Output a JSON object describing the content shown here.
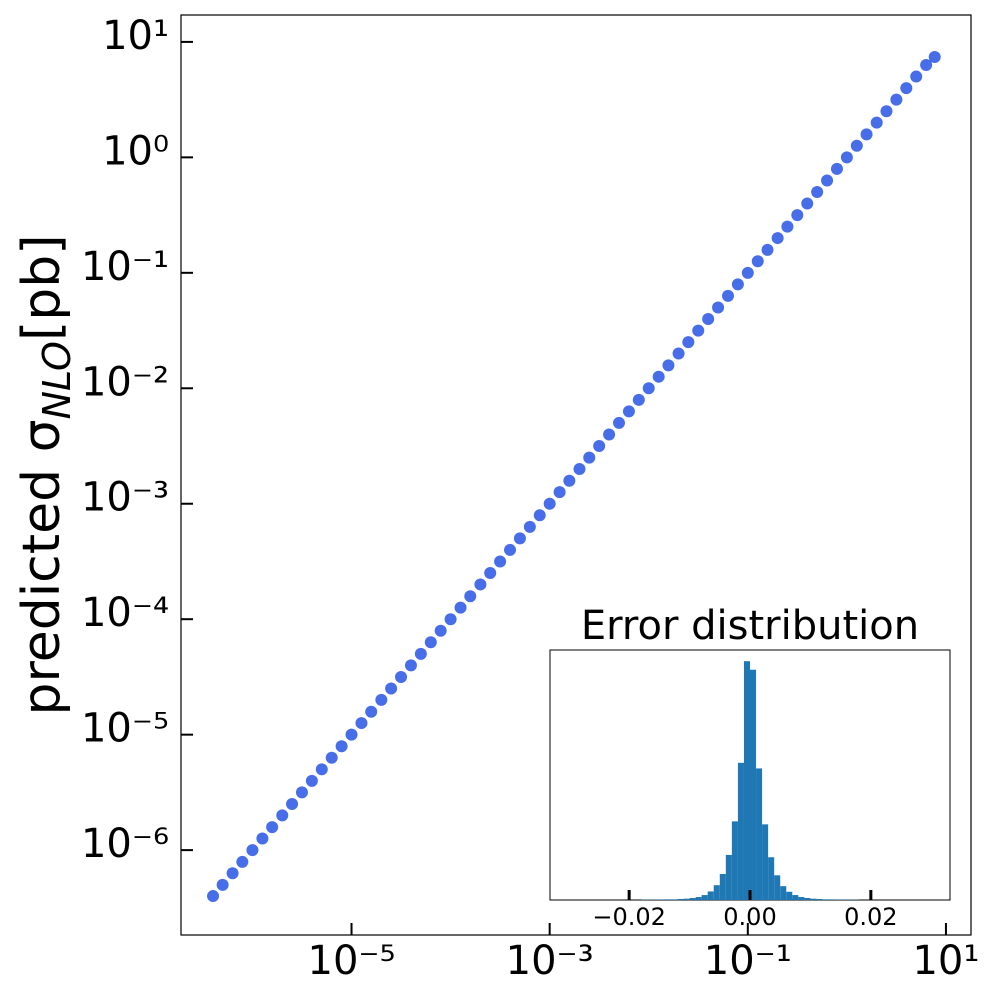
{
  "chart_data": [
    {
      "type": "scatter",
      "xscale": "log",
      "yscale": "log",
      "ylabel": "predicted σ",
      "ylabel_sub": "NLO",
      "ylabel_unit": "[pb]",
      "color": "#0a3ce0",
      "xlim": [
        1.9e-07,
        17.9
      ],
      "ylim": [
        1.84e-07,
        17.1
      ],
      "xticks": [
        {
          "value": 1e-05,
          "label": "10⁻⁵"
        },
        {
          "value": 0.001,
          "label": "10⁻³"
        },
        {
          "value": 0.1,
          "label": "10⁻¹"
        },
        {
          "value": 10,
          "label": "10¹"
        }
      ],
      "yticks": [
        {
          "value": 1e-06,
          "label": "10⁻⁶"
        },
        {
          "value": 1e-05,
          "label": "10⁻⁵"
        },
        {
          "value": 0.0001,
          "label": "10⁻⁴"
        },
        {
          "value": 0.001,
          "label": "10⁻³"
        },
        {
          "value": 0.01,
          "label": "10⁻²"
        },
        {
          "value": 0.1,
          "label": "10⁻¹"
        },
        {
          "value": 1,
          "label": "10⁰"
        },
        {
          "value": 10,
          "label": "10¹"
        }
      ],
      "x": [
        4e-07,
        5e-07,
        6.3e-07,
        7.9e-07,
        1e-06,
        1.26e-06,
        1.58e-06,
        2e-06,
        2.51e-06,
        3.16e-06,
        3.98e-06,
        5.01e-06,
        6.31e-06,
        7.94e-06,
        1e-05,
        1.26e-05,
        1.58e-05,
        2e-05,
        2.51e-05,
        3.16e-05,
        3.98e-05,
        5.01e-05,
        6.31e-05,
        7.94e-05,
        0.0001,
        0.000126,
        0.000158,
        0.0002,
        0.000251,
        0.000316,
        0.000398,
        0.000501,
        0.000631,
        0.000794,
        0.001,
        0.00126,
        0.00158,
        0.002,
        0.00251,
        0.00316,
        0.00398,
        0.00501,
        0.00631,
        0.00794,
        0.01,
        0.0126,
        0.0158,
        0.02,
        0.0251,
        0.0316,
        0.0398,
        0.0501,
        0.0631,
        0.0794,
        0.1,
        0.126,
        0.158,
        0.2,
        0.251,
        0.316,
        0.398,
        0.501,
        0.631,
        0.794,
        1,
        1.26,
        1.58,
        2,
        2.51,
        3.16,
        3.98,
        5.01,
        6.31,
        7.7
      ],
      "y": [
        4e-07,
        5e-07,
        6.3e-07,
        7.9e-07,
        1e-06,
        1.26e-06,
        1.58e-06,
        2e-06,
        2.51e-06,
        3.16e-06,
        3.98e-06,
        5.01e-06,
        6.31e-06,
        7.94e-06,
        1e-05,
        1.26e-05,
        1.58e-05,
        2e-05,
        2.51e-05,
        3.16e-05,
        3.98e-05,
        5.01e-05,
        6.31e-05,
        7.94e-05,
        0.0001,
        0.000126,
        0.000158,
        0.0002,
        0.000251,
        0.000316,
        0.000398,
        0.000501,
        0.000631,
        0.000794,
        0.001,
        0.00126,
        0.00158,
        0.002,
        0.00251,
        0.00316,
        0.00398,
        0.00501,
        0.00631,
        0.00794,
        0.01,
        0.0126,
        0.0158,
        0.02,
        0.0251,
        0.0316,
        0.0398,
        0.0501,
        0.0631,
        0.0794,
        0.1,
        0.126,
        0.158,
        0.2,
        0.251,
        0.316,
        0.398,
        0.501,
        0.631,
        0.794,
        1,
        1.26,
        1.58,
        2,
        2.51,
        3.16,
        3.98,
        5.01,
        6.31,
        7.4
      ]
    },
    {
      "type": "histogram",
      "title": "Error distribution",
      "color": "#1f77b4",
      "xlim": [
        -0.0331,
        0.0331
      ],
      "ylim": [
        0,
        760
      ],
      "xticks": [
        {
          "value": -0.02,
          "label": "−0.02"
        },
        {
          "value": 0,
          "label": "0.00"
        },
        {
          "value": 0.02,
          "label": "0.02"
        }
      ],
      "bins": [
        -0.033,
        -0.032,
        -0.031,
        -0.03,
        -0.029,
        -0.028,
        -0.027,
        -0.026,
        -0.025,
        -0.024,
        -0.023,
        -0.022,
        -0.021,
        -0.02,
        -0.019,
        -0.018,
        -0.017,
        -0.016,
        -0.015,
        -0.014,
        -0.013,
        -0.012,
        -0.011,
        -0.01,
        -0.009,
        -0.008,
        -0.007,
        -0.006,
        -0.005,
        -0.004,
        -0.003,
        -0.002,
        -0.001,
        0,
        0.001,
        0.002,
        0.003,
        0.004,
        0.005,
        0.006,
        0.007,
        0.008,
        0.009,
        0.01,
        0.011,
        0.012,
        0.013,
        0.014,
        0.015,
        0.016,
        0.017,
        0.018,
        0.019,
        0.02,
        0.021,
        0.022,
        0.023,
        0.024,
        0.025,
        0.026,
        0.027,
        0.028,
        0.029,
        0.03,
        0.031,
        0.032,
        0.033
      ],
      "counts": [
        0,
        0,
        0,
        0,
        0,
        0,
        0,
        0,
        0,
        0,
        0,
        0,
        0,
        0,
        0,
        1,
        1,
        1,
        1,
        2,
        2,
        3,
        4,
        6,
        9,
        15,
        26,
        45,
        79,
        137,
        239,
        417,
        726,
        700,
        400,
        230,
        130,
        75,
        42,
        25,
        15,
        9,
        6,
        4,
        3,
        2,
        2,
        1,
        1,
        1,
        1,
        0,
        0,
        0,
        0,
        0,
        0,
        0,
        0,
        0,
        0,
        0,
        0,
        0,
        0,
        0
      ]
    }
  ]
}
